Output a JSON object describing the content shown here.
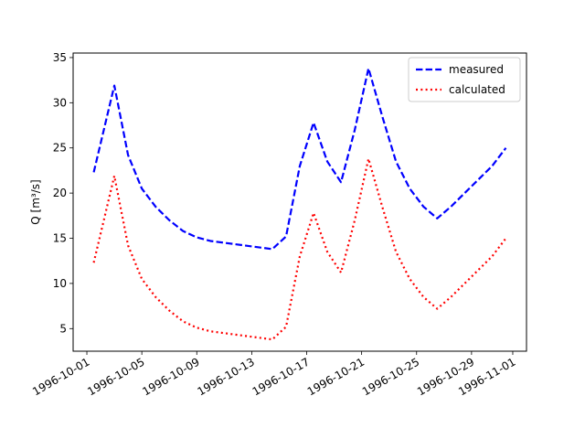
{
  "chart_data": {
    "type": "line",
    "title": "",
    "xlabel": "",
    "ylabel": "Q [m³/s]",
    "x_ticks": [
      "1996-10-01",
      "1996-10-05",
      "1996-10-09",
      "1996-10-13",
      "1996-10-17",
      "1996-10-21",
      "1996-10-25",
      "1996-10-29",
      "1996-11-01"
    ],
    "y_ticks": [
      5,
      10,
      15,
      20,
      25,
      30,
      35
    ],
    "xlim": [
      "1996-09-30",
      "1996-11-02"
    ],
    "ylim": [
      2.5,
      35.5
    ],
    "grid": false,
    "legend_position": "top-right",
    "series": [
      {
        "name": "measured",
        "color": "#0000ff",
        "style": "dashed",
        "points": [
          [
            "1996-10-01T12:00",
            22.3
          ],
          [
            "1996-10-03",
            31.9
          ],
          [
            "1996-10-04",
            24.2
          ],
          [
            "1996-10-05",
            20.5
          ],
          [
            "1996-10-06",
            18.5
          ],
          [
            "1996-10-07",
            17.0
          ],
          [
            "1996-10-08",
            15.8
          ],
          [
            "1996-10-09",
            15.1
          ],
          [
            "1996-10-10",
            14.7
          ],
          [
            "1996-10-11",
            14.5
          ],
          [
            "1996-10-12",
            14.3
          ],
          [
            "1996-10-13",
            14.1
          ],
          [
            "1996-10-14",
            13.9
          ],
          [
            "1996-10-14T12:00",
            13.8
          ],
          [
            "1996-10-15T12:00",
            15.2
          ],
          [
            "1996-10-16T12:00",
            23.0
          ],
          [
            "1996-10-17T12:00",
            27.8
          ],
          [
            "1996-10-18T12:00",
            23.5
          ],
          [
            "1996-10-19T12:00",
            21.2
          ],
          [
            "1996-10-20T12:00",
            27.0
          ],
          [
            "1996-10-21T12:00",
            33.8
          ],
          [
            "1996-10-22T12:00",
            28.5
          ],
          [
            "1996-10-23T12:00",
            23.5
          ],
          [
            "1996-10-24T12:00",
            20.5
          ],
          [
            "1996-10-25T12:00",
            18.5
          ],
          [
            "1996-10-26T12:00",
            17.2
          ],
          [
            "1996-10-27T12:00",
            18.5
          ],
          [
            "1996-10-28T12:00",
            20.0
          ],
          [
            "1996-10-29T12:00",
            21.5
          ],
          [
            "1996-10-30T12:00",
            23.0
          ],
          [
            "1996-10-31T12:00",
            25.0
          ]
        ]
      },
      {
        "name": "calculated",
        "color": "#ff0000",
        "style": "dotted",
        "points": [
          [
            "1996-10-01T12:00",
            12.3
          ],
          [
            "1996-10-03",
            21.9
          ],
          [
            "1996-10-04",
            14.2
          ],
          [
            "1996-10-05",
            10.5
          ],
          [
            "1996-10-06",
            8.5
          ],
          [
            "1996-10-07",
            7.0
          ],
          [
            "1996-10-08",
            5.8
          ],
          [
            "1996-10-09",
            5.1
          ],
          [
            "1996-10-10",
            4.7
          ],
          [
            "1996-10-11",
            4.5
          ],
          [
            "1996-10-12",
            4.3
          ],
          [
            "1996-10-13",
            4.1
          ],
          [
            "1996-10-14",
            3.9
          ],
          [
            "1996-10-14T12:00",
            3.8
          ],
          [
            "1996-10-15T12:00",
            5.2
          ],
          [
            "1996-10-16T12:00",
            13.0
          ],
          [
            "1996-10-17T12:00",
            17.8
          ],
          [
            "1996-10-18T12:00",
            13.5
          ],
          [
            "1996-10-19T12:00",
            11.2
          ],
          [
            "1996-10-20T12:00",
            17.0
          ],
          [
            "1996-10-21T12:00",
            23.8
          ],
          [
            "1996-10-22T12:00",
            18.5
          ],
          [
            "1996-10-23T12:00",
            13.5
          ],
          [
            "1996-10-24T12:00",
            10.5
          ],
          [
            "1996-10-25T12:00",
            8.5
          ],
          [
            "1996-10-26T12:00",
            7.2
          ],
          [
            "1996-10-27T12:00",
            8.5
          ],
          [
            "1996-10-28T12:00",
            10.0
          ],
          [
            "1996-10-29T12:00",
            11.5
          ],
          [
            "1996-10-30T12:00",
            13.0
          ],
          [
            "1996-10-31T12:00",
            15.0
          ]
        ]
      }
    ]
  }
}
